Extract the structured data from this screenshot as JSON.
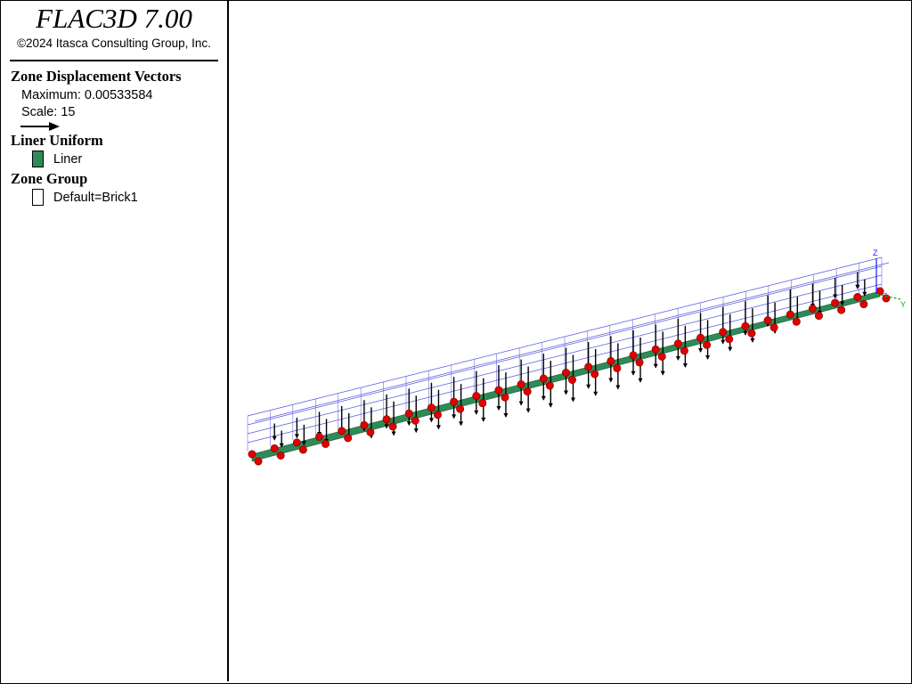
{
  "app": {
    "title": "FLAC3D 7.00",
    "copyright": "©2024 Itasca Consulting Group, Inc."
  },
  "legend": {
    "zone_displacement": {
      "title": "Zone Displacement Vectors",
      "maximum": "Maximum: 0.00533584",
      "scale": "Scale: 15",
      "arrow_icon": "arrow-right-icon"
    },
    "liner_uniform": {
      "title": "Liner Uniform",
      "label": "Liner",
      "color": "#2e8b57"
    },
    "zone_group": {
      "title": "Zone Group",
      "label": "Default=Brick1",
      "color": "#ffffff"
    }
  },
  "axes": {
    "z_label": "Z",
    "y_label": "Y",
    "z_color": "#1a1aff",
    "y_color": "#00b000"
  },
  "colors": {
    "grid": "#5555dd",
    "liner": "#2e8b57",
    "node": "#e00000",
    "vector": "#000000"
  }
}
